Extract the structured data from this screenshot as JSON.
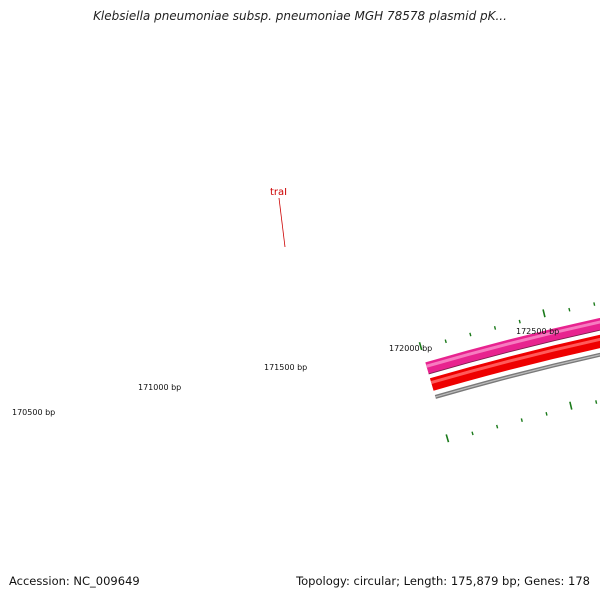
{
  "title": "Klebsiella pneumoniae subsp. pneumoniae MGH 78578 plasmid pK...",
  "accession": "Accession: NC_009649",
  "summary": "Topology: circular; Length: 175,879 bp; Genes: 178",
  "gene_label": "traI",
  "colors": {
    "forward_track": "#e8238f",
    "forward_track_highlight": "#f77bc0",
    "reverse_track": "#ee0000",
    "reverse_track_highlight": "#ff5a5a",
    "backbone": "#7a7a7a",
    "tick": "#1a7a1a",
    "label_red": "#cc0000"
  },
  "ruler": {
    "labels": [
      "170500 bp",
      "171000 bp",
      "171500 bp",
      "172000 bp",
      "172500 bp"
    ]
  }
}
